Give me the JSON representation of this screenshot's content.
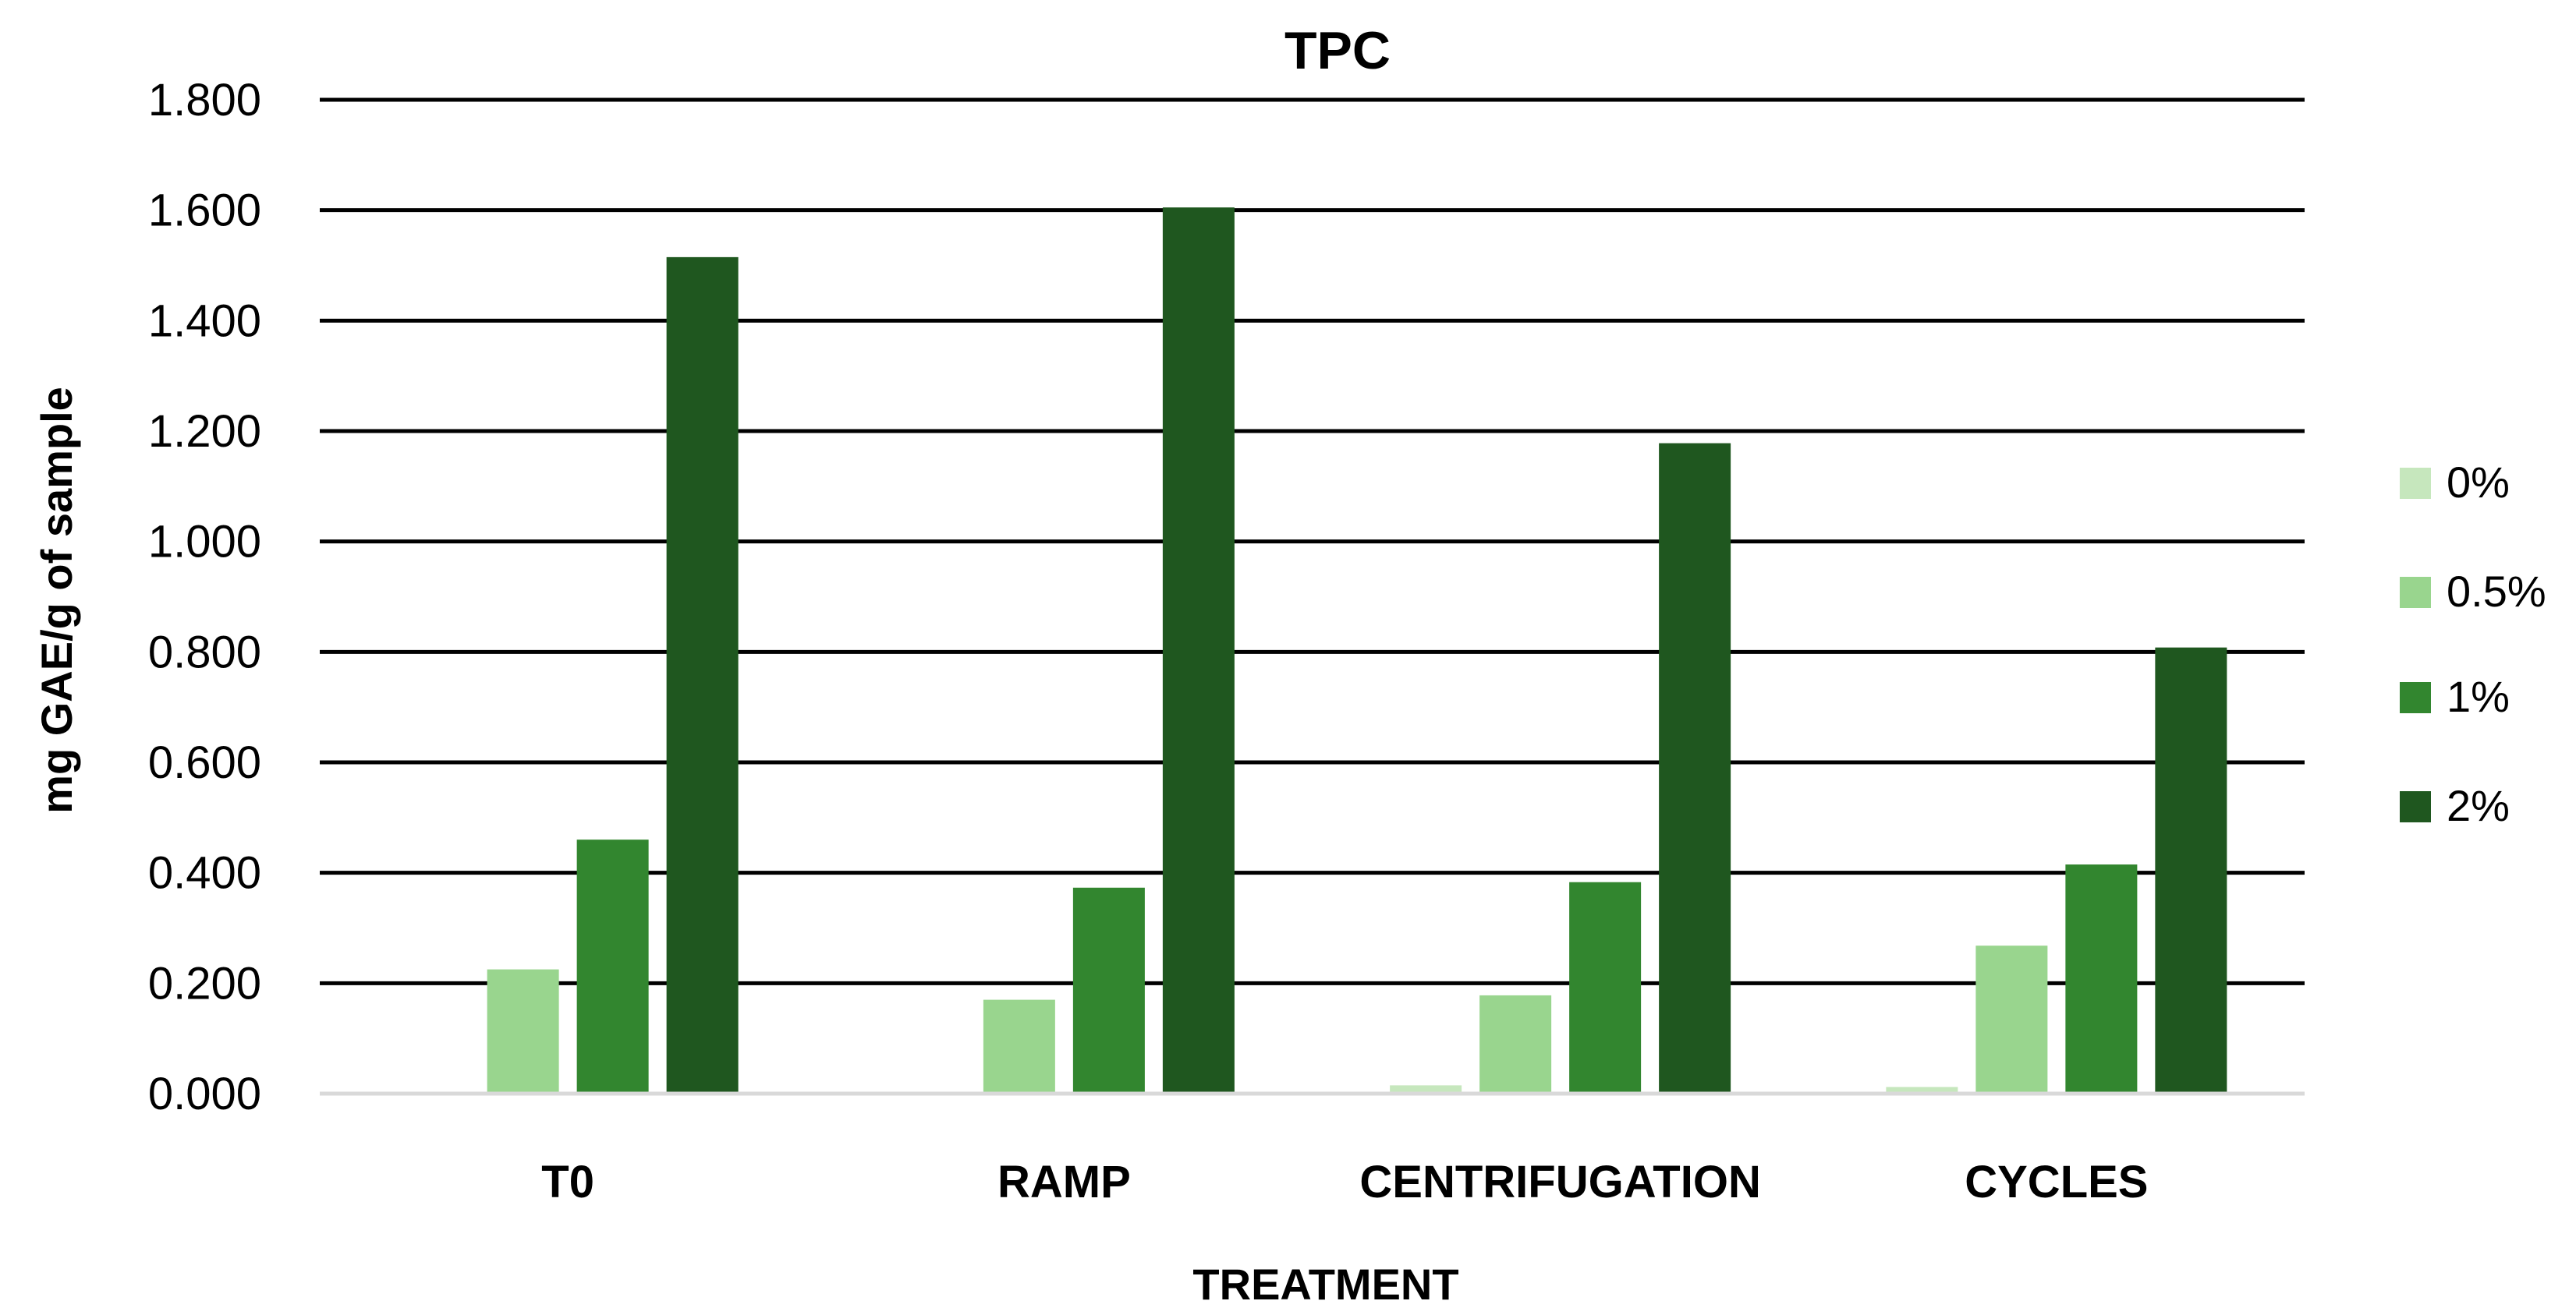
{
  "chart_data": {
    "type": "bar",
    "title": "TPC",
    "xlabel": "TREATMENT",
    "ylabel": "mg GAE/g of sample",
    "categories": [
      "T0",
      "RAMP",
      "CENTRIFUGATION",
      "CYCLES"
    ],
    "series": [
      {
        "name": "0%",
        "color": "#c6e7bd",
        "values": [
          0.0,
          0.0,
          0.015,
          0.012
        ]
      },
      {
        "name": "0.5%",
        "color": "#99d58e",
        "values": [
          0.225,
          0.17,
          0.178,
          0.268
        ]
      },
      {
        "name": "1%",
        "color": "#32862f",
        "values": [
          0.46,
          0.373,
          0.383,
          0.415
        ]
      },
      {
        "name": "2%",
        "color": "#1f571f",
        "values": [
          1.515,
          1.605,
          1.178,
          0.808
        ]
      }
    ],
    "ylim": [
      0,
      1.8
    ],
    "yticks": [
      "0.000",
      "0.200",
      "0.400",
      "0.600",
      "0.800",
      "1.000",
      "1.200",
      "1.400",
      "1.600",
      "1.800"
    ],
    "ytick_values": [
      0,
      0.2,
      0.4,
      0.6,
      0.8,
      1.0,
      1.2,
      1.4,
      1.6,
      1.8
    ],
    "grid": true,
    "legend_position": "right"
  }
}
